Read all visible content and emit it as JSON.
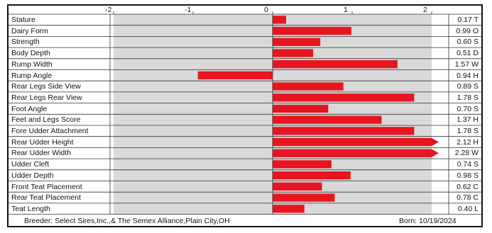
{
  "chart_data": {
    "type": "bar",
    "orientation": "horizontal",
    "xlim": [
      -2.0,
      2.0
    ],
    "x_ticks": [
      "-2",
      "-1",
      "0",
      "1",
      "2"
    ],
    "bar_color": "#e8141e",
    "categories": [
      "Stature",
      "Dairy Form",
      "Strength",
      "Body Depth",
      "Rump Width",
      "Rump Angle",
      "Rear Legs Side View",
      "Rear Legs Rear View",
      "Foot Angle",
      "Feet and Legs Score",
      "Fore Udder Attachment",
      "Rear Udder Height",
      "Rear Udder Width",
      "Udder Cleft",
      "Udder Depth",
      "Front Teat Placement",
      "Rear Teat Placement",
      "Teat Length"
    ],
    "values": [
      0.17,
      0.99,
      0.6,
      0.51,
      1.57,
      -0.94,
      0.89,
      1.78,
      0.7,
      1.37,
      1.78,
      2.12,
      2.28,
      0.74,
      0.98,
      0.62,
      0.78,
      0.4
    ],
    "value_labels": [
      "0.17 T",
      "0.99 O",
      "0.60 S",
      "0.51 D",
      "1.57 W",
      "0.94 H",
      "0.89 S",
      "1.78 S",
      "0.70 S",
      "1.37 H",
      "1.78 S",
      "2.12 H",
      "2.28 W",
      "0.74 S",
      "0.98 S",
      "0.62 C",
      "0.78 C",
      "0.40 L"
    ]
  },
  "footer": {
    "breeder": "Breeder:  Select Sires,Inc.,& The Semex Alliance,Plain City,OH",
    "born": "Born:  10/19/2024"
  }
}
